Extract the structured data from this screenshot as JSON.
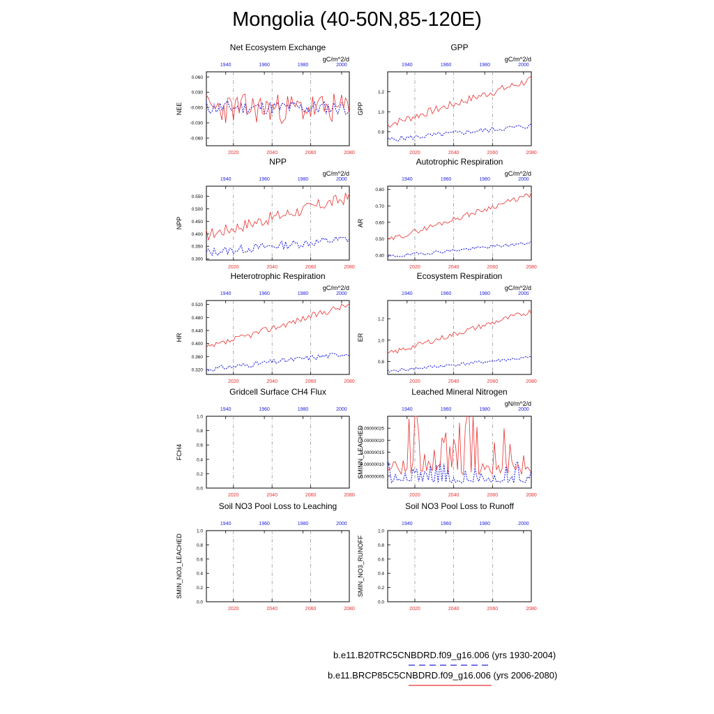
{
  "title": "Mongolia (40-50N,85-120E)",
  "colors": {
    "historical": "#2222dd",
    "future": "#e83030"
  },
  "axes": {
    "bottom_ticks": [
      2020,
      2040,
      2060,
      2080
    ],
    "top_ticks": [
      1940,
      1960,
      1980,
      2000
    ],
    "bottom_range": [
      2006,
      2080
    ],
    "top_range": [
      1930,
      2004
    ]
  },
  "legend": {
    "historical_label": "b.e11.B20TRC5CNBDRD.f09_g16.006 (yrs 1930-2004)",
    "future_label": "b.e11.BRCP85C5CNBDRD.f09_g16.006 (yrs 2006-2080)"
  },
  "chart_data": [
    {
      "id": "nee",
      "type": "line",
      "title": "Net Ecosystem Exchange",
      "units": "gC/m^2/d",
      "ylabel": "NEE",
      "ylim": [
        -0.075,
        0.07
      ],
      "yticks": [
        0.06,
        0.03,
        -0.0,
        -0.03,
        -0.06
      ],
      "ytick_labels": [
        "0.060",
        "0.030",
        "-0.000",
        "-0.030",
        "-0.060"
      ],
      "series": [
        {
          "name": "historical",
          "start": 0.0,
          "trend": 0.0,
          "noise": 0.014,
          "seed": 11
        },
        {
          "name": "future",
          "start": -0.002,
          "trend": 0.0,
          "noise": 0.03,
          "seed": 23
        }
      ]
    },
    {
      "id": "gpp",
      "type": "line",
      "title": "GPP",
      "units": "gC/m^2/d",
      "ylabel": "GPP",
      "ylim": [
        0.66,
        1.4
      ],
      "yticks": [
        0.8,
        1.0,
        1.2
      ],
      "ytick_labels": [
        "0.8",
        "1.0",
        "1.2"
      ],
      "series": [
        {
          "name": "historical",
          "start": 0.72,
          "trend": 0.14,
          "noise": 0.025,
          "seed": 5
        },
        {
          "name": "future",
          "start": 0.87,
          "trend": 0.45,
          "noise": 0.04,
          "seed": 7
        }
      ]
    },
    {
      "id": "npp",
      "type": "line",
      "title": "NPP",
      "units": "gC/m^2/d",
      "ylabel": "NPP",
      "ylim": [
        0.295,
        0.59
      ],
      "yticks": [
        0.3,
        0.35,
        0.4,
        0.45,
        0.5,
        0.55
      ],
      "ytick_labels": [
        "0.300",
        "0.350",
        "0.400",
        "0.450",
        "0.500",
        "0.550"
      ],
      "series": [
        {
          "name": "historical",
          "start": 0.325,
          "trend": 0.055,
          "noise": 0.017,
          "seed": 13
        },
        {
          "name": "future",
          "start": 0.395,
          "trend": 0.15,
          "noise": 0.025,
          "seed": 17
        }
      ]
    },
    {
      "id": "ar",
      "type": "line",
      "title": "Autotrophic Respiration",
      "units": "gC/m^2/d",
      "ylabel": "AR",
      "ylim": [
        0.37,
        0.82
      ],
      "yticks": [
        0.4,
        0.5,
        0.6,
        0.7,
        0.8
      ],
      "ytick_labels": [
        "0.40",
        "0.50",
        "0.60",
        "0.70",
        "0.80"
      ],
      "series": [
        {
          "name": "historical",
          "start": 0.39,
          "trend": 0.085,
          "noise": 0.01,
          "seed": 19
        },
        {
          "name": "future",
          "start": 0.49,
          "trend": 0.28,
          "noise": 0.016,
          "seed": 29
        }
      ]
    },
    {
      "id": "hr",
      "type": "line",
      "title": "Heterotrophic Respiration",
      "units": "gC/m^2/d",
      "ylabel": "HR",
      "ylim": [
        0.305,
        0.532
      ],
      "yticks": [
        0.32,
        0.36,
        0.4,
        0.44,
        0.48,
        0.52
      ],
      "ytick_labels": [
        "0.320",
        "0.360",
        "0.400",
        "0.440",
        "0.480",
        "0.520"
      ],
      "series": [
        {
          "name": "historical",
          "start": 0.32,
          "trend": 0.05,
          "noise": 0.008,
          "seed": 31
        },
        {
          "name": "future",
          "start": 0.385,
          "trend": 0.135,
          "noise": 0.01,
          "seed": 37
        }
      ]
    },
    {
      "id": "er",
      "type": "line",
      "title": "Ecosystem Respiration",
      "units": "gC/m^2/d",
      "ylabel": "ER",
      "ylim": [
        0.68,
        1.37
      ],
      "yticks": [
        0.8,
        1.0,
        1.2
      ],
      "ytick_labels": [
        "0.8",
        "1.0",
        "1.2"
      ],
      "series": [
        {
          "name": "historical",
          "start": 0.71,
          "trend": 0.13,
          "noise": 0.015,
          "seed": 41
        },
        {
          "name": "future",
          "start": 0.87,
          "trend": 0.4,
          "noise": 0.025,
          "seed": 43
        }
      ]
    },
    {
      "id": "fch4",
      "type": "line",
      "title": "Gridcell Surface CH4 Flux",
      "units": "",
      "ylabel": "FCH4",
      "ylim": [
        0.0,
        1.0
      ],
      "yticks": [
        0.0,
        0.2,
        0.4,
        0.6,
        0.8,
        1.0
      ],
      "ytick_labels": [
        "0.0",
        "0.2",
        "0.4",
        "0.6",
        "0.8",
        "1.0"
      ],
      "series": []
    },
    {
      "id": "sminn",
      "type": "line",
      "title": "Leached Mineral Nitrogen",
      "units": "gN/m^2/d",
      "ylabel": "SMINN_LEACHED",
      "ylim": [
        0.0,
        3e-07
      ],
      "yticks": [
        5e-08,
        1e-07,
        1.5e-07,
        2e-07,
        2.5e-07
      ],
      "ytick_labels": [
        "0.00000005",
        "0.00000010",
        "0.00000015",
        "0.00000020",
        "0.00000025"
      ],
      "series": [
        {
          "name": "historical",
          "start": 3e-08,
          "trend": 0.0,
          "noise": 3e-08,
          "seed": 47,
          "spiky": true
        },
        {
          "name": "future",
          "start": 8e-08,
          "trend": 0.0,
          "noise": 9e-08,
          "seed": 53,
          "spiky": true
        }
      ]
    },
    {
      "id": "no3leach",
      "type": "line",
      "title": "Soil NO3 Pool Loss to Leaching",
      "units": "",
      "ylabel": "SMIN_NO3_LEACHED",
      "ylim": [
        0.0,
        1.0
      ],
      "yticks": [
        0.0,
        0.2,
        0.4,
        0.6,
        0.8,
        1.0
      ],
      "ytick_labels": [
        "0.0",
        "0.2",
        "0.4",
        "0.6",
        "0.8",
        "1.0"
      ],
      "series": []
    },
    {
      "id": "no3runoff",
      "type": "line",
      "title": "Soil NO3 Pool Loss to Runoff",
      "units": "",
      "ylabel": "SMIN_NO3_RUNOFF",
      "ylim": [
        0.0,
        1.0
      ],
      "yticks": [
        0.0,
        0.2,
        0.4,
        0.6,
        0.8,
        1.0
      ],
      "ytick_labels": [
        "0.0",
        "0.2",
        "0.4",
        "0.6",
        "0.8",
        "1.0"
      ],
      "series": []
    }
  ]
}
